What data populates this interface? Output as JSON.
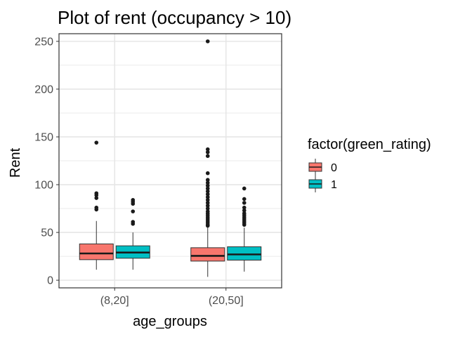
{
  "chart_data": {
    "type": "box",
    "title": "Plot of rent (occupancy > 10)",
    "xlabel": "age_groups",
    "ylabel": "Rent",
    "categories": [
      "(8,20]",
      "(20,50]"
    ],
    "ylim": [
      -8,
      258
    ],
    "yticks": [
      0,
      50,
      100,
      150,
      200,
      250
    ],
    "grid": true,
    "legend": {
      "title": "factor(green_rating)",
      "placement": "right",
      "entries": [
        {
          "label": "0",
          "color": "#F8766D"
        },
        {
          "label": "1",
          "color": "#00BFC4"
        }
      ]
    },
    "series": [
      {
        "name": "0",
        "color": "#F8766D",
        "boxes": [
          {
            "category": "(8,20]",
            "lower_whisker": 11,
            "q1": 21.5,
            "median": 28,
            "q3": 38,
            "upper_whisker": 62,
            "outliers": [
              144,
              91,
              89,
              86,
              76,
              74
            ]
          },
          {
            "category": "(20,50]",
            "lower_whisker": 3.5,
            "q1": 20,
            "median": 25.5,
            "q3": 34,
            "upper_whisker": 55,
            "outliers": [
              250,
              137,
              134,
              130,
              112,
              105,
              102,
              99,
              96,
              93,
              90,
              87,
              84,
              81,
              78,
              75,
              72,
              70,
              68,
              66,
              64,
              62,
              60,
              58,
              57
            ]
          }
        ]
      },
      {
        "name": "1",
        "color": "#00BFC4",
        "boxes": [
          {
            "category": "(8,20]",
            "lower_whisker": 11,
            "q1": 23,
            "median": 29,
            "q3": 36,
            "upper_whisker": 50,
            "outliers": [
              84,
              82,
              80,
              72,
              61,
              59
            ]
          },
          {
            "category": "(20,50]",
            "lower_whisker": 9,
            "q1": 21,
            "median": 27,
            "q3": 35,
            "upper_whisker": 55,
            "outliers": [
              96,
              85,
              81,
              76,
              73,
              70,
              68,
              66,
              64,
              62,
              60,
              58
            ]
          }
        ]
      }
    ]
  }
}
